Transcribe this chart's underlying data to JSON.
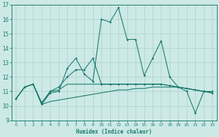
{
  "xlabel": "Humidex (Indice chaleur)",
  "x": [
    0,
    1,
    2,
    3,
    4,
    5,
    6,
    7,
    8,
    9,
    10,
    11,
    12,
    13,
    14,
    15,
    16,
    17,
    18,
    19,
    20,
    21,
    22,
    23
  ],
  "series_spiky": [
    10.5,
    11.3,
    11.5,
    10.1,
    10.9,
    11.0,
    12.6,
    13.3,
    12.2,
    11.7,
    16.0,
    15.8,
    16.8,
    14.6,
    14.6,
    12.1,
    13.3,
    14.5,
    12.0,
    11.3,
    11.0,
    9.5,
    11.0,
    11.0
  ],
  "series_upper": [
    10.5,
    11.3,
    11.5,
    10.2,
    11.0,
    11.3,
    12.0,
    12.5,
    12.5,
    13.3,
    11.5,
    11.5,
    11.5,
    11.5,
    11.5,
    11.5,
    11.5,
    11.5,
    11.4,
    11.3,
    11.2,
    11.1,
    11.0,
    10.9
  ],
  "series_mid": [
    10.5,
    11.3,
    11.5,
    10.2,
    11.0,
    11.1,
    11.5,
    11.5,
    11.5,
    11.5,
    11.5,
    11.5,
    11.5,
    11.5,
    11.5,
    11.5,
    11.5,
    11.5,
    11.4,
    11.3,
    11.2,
    11.1,
    11.0,
    10.9
  ],
  "series_lower": [
    10.5,
    11.3,
    11.5,
    10.1,
    10.3,
    10.4,
    10.5,
    10.6,
    10.7,
    10.8,
    10.9,
    11.0,
    11.1,
    11.1,
    11.2,
    11.2,
    11.3,
    11.3,
    11.3,
    11.3,
    11.2,
    11.1,
    11.0,
    10.9
  ],
  "ylim": [
    9,
    17
  ],
  "xlim_min": -0.5,
  "xlim_max": 23.5,
  "yticks": [
    9,
    10,
    11,
    12,
    13,
    14,
    15,
    16,
    17
  ],
  "xticks": [
    0,
    1,
    2,
    3,
    4,
    5,
    6,
    7,
    8,
    9,
    10,
    11,
    12,
    13,
    14,
    15,
    16,
    17,
    18,
    19,
    20,
    21,
    22,
    23
  ],
  "line_color": "#1a7a6e",
  "bg_color": "#cce9e5",
  "grid_color": "#aacfcb"
}
